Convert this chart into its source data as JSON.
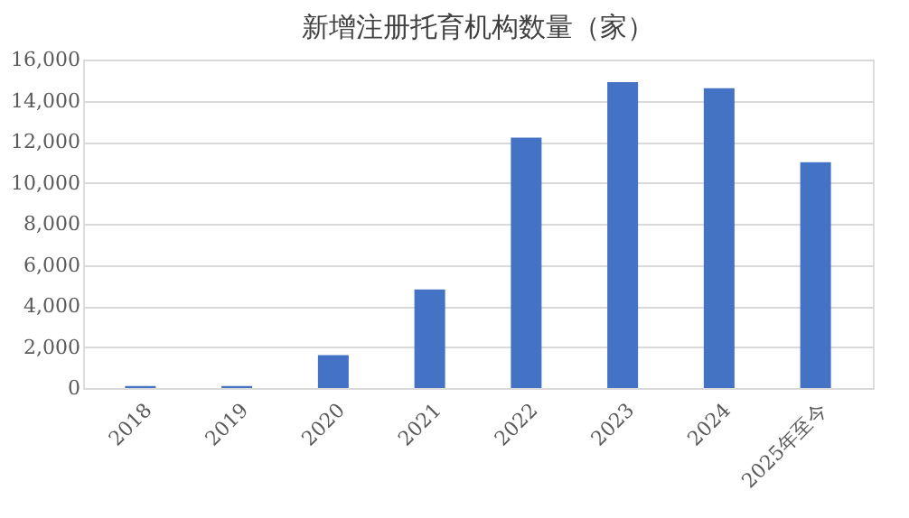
{
  "chart_data": {
    "type": "bar",
    "title": "新增注册托育机构数量（家）",
    "categories": [
      "2018",
      "2019",
      "2020",
      "2021",
      "2022",
      "2023",
      "2024",
      "2025年至今"
    ],
    "values": [
      100,
      100,
      1600,
      4800,
      12200,
      14900,
      14600,
      11000
    ],
    "color": "#4472c4",
    "ylim": [
      0,
      16000
    ],
    "yticks": [
      {
        "value": 0,
        "label": "0"
      },
      {
        "value": 2000,
        "label": "2,000"
      },
      {
        "value": 4000,
        "label": "4,000"
      },
      {
        "value": 6000,
        "label": "6,000"
      },
      {
        "value": 8000,
        "label": "8,000"
      },
      {
        "value": 10000,
        "label": "10,000"
      },
      {
        "value": 12000,
        "label": "12,000"
      },
      {
        "value": 14000,
        "label": "14,000"
      },
      {
        "value": 16000,
        "label": "16,000"
      }
    ],
    "grid": "y"
  }
}
